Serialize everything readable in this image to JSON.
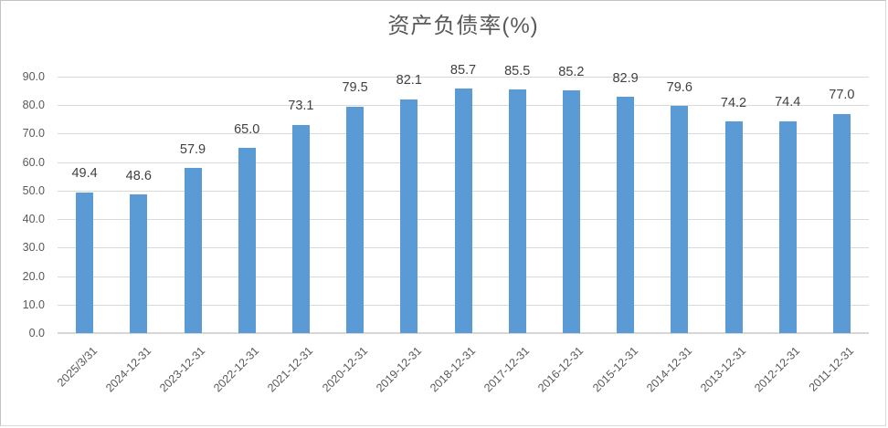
{
  "chart_data": {
    "type": "bar",
    "title": "资产负债率(%)",
    "categories": [
      "2025/3/31",
      "2024-12-31",
      "2023-12-31",
      "2022-12-31",
      "2021-12-31",
      "2020-12-31",
      "2019-12-31",
      "2018-12-31",
      "2017-12-31",
      "2016-12-31",
      "2015-12-31",
      "2014-12-31",
      "2013-12-31",
      "2012-12-31",
      "2011-12-31"
    ],
    "values": [
      49.4,
      48.6,
      57.9,
      65.0,
      73.1,
      79.5,
      82.1,
      85.7,
      85.5,
      85.2,
      82.9,
      79.6,
      74.2,
      74.4,
      77.0
    ],
    "xlabel": "",
    "ylabel": "",
    "ylim": [
      0,
      90
    ],
    "ytick_step": 10,
    "ytick_decimals": 1,
    "data_labels": "outside-end",
    "grid": true,
    "legend_position": "none",
    "colors": {
      "bar": "#5b9bd5",
      "gridline": "#d9d9d9",
      "axis_line": "#d6d6d6",
      "axis_label": "#595959",
      "data_label": "#404040",
      "title": "#595959"
    }
  }
}
